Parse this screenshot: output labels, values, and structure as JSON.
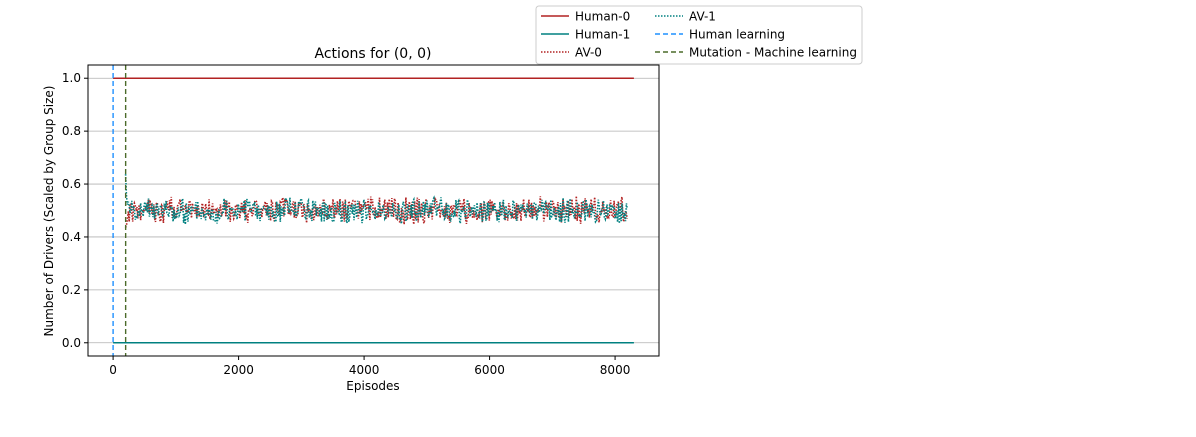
{
  "chart_data": {
    "type": "line",
    "title": "Actions for (0, 0)",
    "xlabel": "Episodes",
    "ylabel": "Number of Drivers (Scaled by Group Size)",
    "xlim": [
      -400,
      8700
    ],
    "ylim": [
      -0.05,
      1.05
    ],
    "xticks": [
      0,
      2000,
      4000,
      6000,
      8000
    ],
    "xtick_labels": [
      "0",
      "2000",
      "4000",
      "6000",
      "8000"
    ],
    "yticks": [
      0.0,
      0.2,
      0.4,
      0.6,
      0.8,
      1.0
    ],
    "ytick_labels": [
      "0.0",
      "0.2",
      "0.4",
      "0.6",
      "0.8",
      "1.0"
    ],
    "grid": "horizontal",
    "legend_placement": "top-right outside",
    "series": [
      {
        "name": "Human-0",
        "style": "solid",
        "color": "#b22222",
        "x": [
          0,
          8300
        ],
        "y": [
          1.0,
          1.0
        ]
      },
      {
        "name": "Human-1",
        "style": "solid",
        "color": "#008080",
        "x": [
          0,
          8300
        ],
        "y": [
          0.0,
          0.0
        ]
      },
      {
        "name": "AV-0",
        "style": "dotted",
        "color": "#b22222",
        "x_start": 200,
        "x_end": 8200,
        "mean": 0.5,
        "amplitude": 0.04,
        "start_value": 0.4
      },
      {
        "name": "AV-1",
        "style": "dotted",
        "color": "#008080",
        "x_start": 200,
        "x_end": 8200,
        "mean": 0.5,
        "amplitude": 0.04,
        "start_value": 0.6
      }
    ],
    "vlines": [
      {
        "name": "Human learning",
        "x": 0,
        "style": "dashed",
        "color": "#1e90ff"
      },
      {
        "name": "Mutation - Machine learning",
        "x": 200,
        "style": "dashed",
        "color": "#4b6b2a"
      }
    ]
  }
}
